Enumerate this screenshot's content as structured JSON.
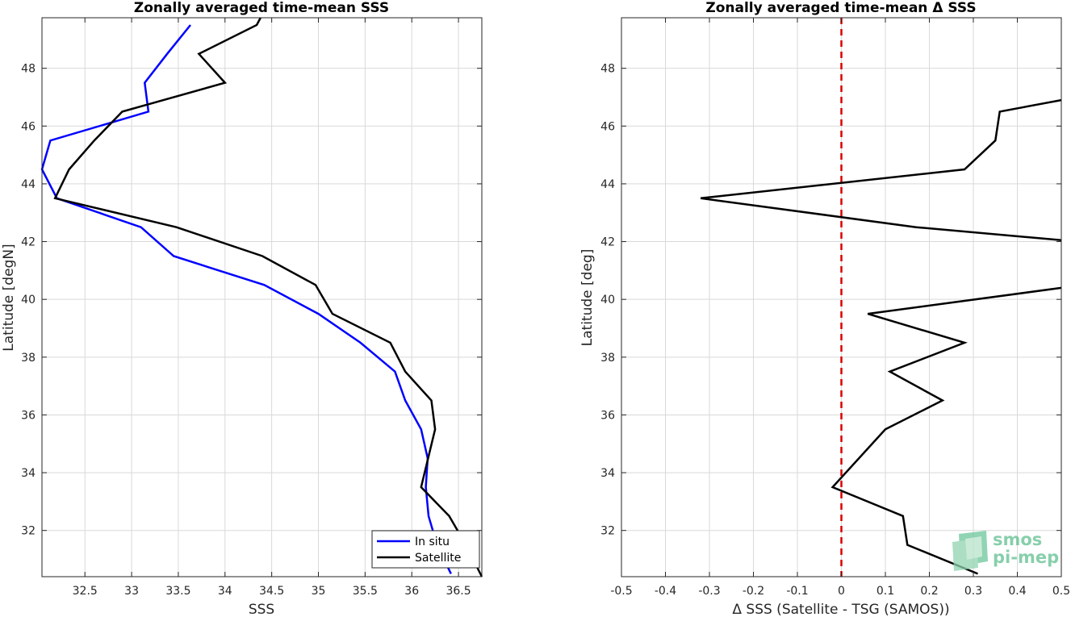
{
  "chart_data": [
    {
      "type": "line",
      "title": "Zonally averaged time-mean SSS",
      "xlabel": "SSS",
      "ylabel": "Latitude [degN]",
      "xlim": [
        32.04,
        36.75
      ],
      "ylim": [
        30.4,
        49.75
      ],
      "xticks": [
        32.5,
        33,
        33.5,
        34,
        34.5,
        35,
        35.5,
        36,
        36.5
      ],
      "xtick_labels": [
        "32.5",
        "33",
        "33.5",
        "34",
        "34.5",
        "35",
        "35.5",
        "36",
        "36.5"
      ],
      "yticks": [
        32,
        34,
        36,
        38,
        40,
        42,
        44,
        46,
        48
      ],
      "ytick_labels": [
        "32",
        "34",
        "36",
        "38",
        "40",
        "42",
        "44",
        "46",
        "48"
      ],
      "grid": true,
      "legend_position": "bottom-right",
      "series": [
        {
          "name": "In situ",
          "color": "#0000ff",
          "points": [
            [
              36.42,
              30.5
            ],
            [
              36.27,
              31.5
            ],
            [
              36.18,
              32.5
            ],
            [
              36.15,
              33.5
            ],
            [
              36.17,
              34.5
            ],
            [
              36.1,
              35.5
            ],
            [
              35.93,
              36.5
            ],
            [
              35.82,
              37.5
            ],
            [
              35.45,
              38.5
            ],
            [
              35.0,
              39.5
            ],
            [
              34.42,
              40.5
            ],
            [
              33.45,
              41.5
            ],
            [
              33.1,
              42.5
            ],
            [
              32.2,
              43.5
            ],
            [
              32.04,
              44.5
            ],
            [
              32.13,
              45.5
            ],
            [
              33.18,
              46.5
            ],
            [
              33.14,
              47.5
            ],
            [
              33.38,
              48.5
            ],
            [
              33.63,
              49.5
            ]
          ]
        },
        {
          "name": "Satellite",
          "color": "#000000",
          "points": [
            [
              36.75,
              30.4
            ],
            [
              36.58,
              31.5
            ],
            [
              36.4,
              32.5
            ],
            [
              36.1,
              33.5
            ],
            [
              36.25,
              35.5
            ],
            [
              36.21,
              36.5
            ],
            [
              35.93,
              37.5
            ],
            [
              35.77,
              38.5
            ],
            [
              35.15,
              39.5
            ],
            [
              34.97,
              40.5
            ],
            [
              34.4,
              41.5
            ],
            [
              33.48,
              42.5
            ],
            [
              32.18,
              43.5
            ],
            [
              32.33,
              44.5
            ],
            [
              32.6,
              45.5
            ],
            [
              32.9,
              46.5
            ],
            [
              34.0,
              47.5
            ],
            [
              33.72,
              48.5
            ],
            [
              34.34,
              49.5
            ],
            [
              34.38,
              49.75
            ]
          ]
        }
      ]
    },
    {
      "type": "line",
      "title": "Zonally averaged time-mean Δ SSS",
      "xlabel": "Δ SSS (Satellite - TSG (SAMOS))",
      "ylabel": "Latitude [deg]",
      "xlim": [
        -0.5,
        0.5
      ],
      "ylim": [
        30.4,
        49.75
      ],
      "xticks": [
        -0.5,
        -0.4,
        -0.3,
        -0.2,
        -0.1,
        0,
        0.1,
        0.2,
        0.3,
        0.4,
        0.5
      ],
      "xtick_labels": [
        "-0.5",
        "-0.4",
        "-0.3",
        "-0.2",
        "-0.1",
        "0",
        "0.1",
        "0.2",
        "0.3",
        "0.4",
        "0.5"
      ],
      "yticks": [
        32,
        34,
        36,
        38,
        40,
        42,
        44,
        46,
        48
      ],
      "ytick_labels": [
        "32",
        "34",
        "36",
        "38",
        "40",
        "42",
        "44",
        "46",
        "48"
      ],
      "grid": true,
      "reference_line": {
        "x": 0,
        "color": "#dd0000",
        "style": "dashed"
      },
      "series": [
        {
          "color": "#000000",
          "segments": [
            [
              [
                0.31,
                30.5
              ],
              [
                0.15,
                31.5
              ],
              [
                0.14,
                32.5
              ],
              [
                -0.02,
                33.5
              ],
              [
                0.1,
                35.5
              ],
              [
                0.23,
                36.5
              ],
              [
                0.11,
                37.5
              ],
              [
                0.28,
                38.5
              ],
              [
                0.06,
                39.5
              ],
              [
                0.5,
                40.4
              ]
            ],
            [
              [
                0.5,
                42.05
              ],
              [
                0.17,
                42.5
              ],
              [
                -0.32,
                43.5
              ],
              [
                0.28,
                44.5
              ],
              [
                0.35,
                45.5
              ],
              [
                0.36,
                46.5
              ],
              [
                0.5,
                46.9
              ]
            ]
          ]
        }
      ]
    }
  ],
  "watermark": {
    "line1": "smos",
    "line2": "pi-mep",
    "color": "#5fbf8f"
  }
}
